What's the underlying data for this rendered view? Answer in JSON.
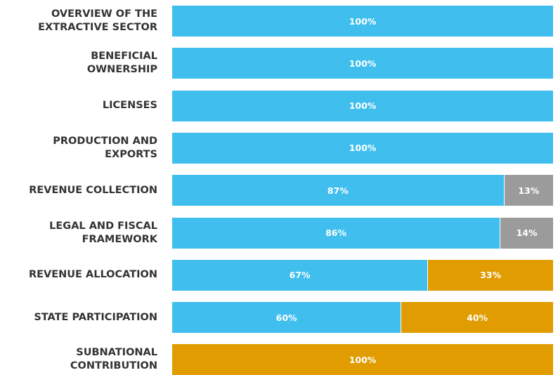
{
  "chart_data": {
    "type": "stacked-bar-horizontal",
    "categories": [
      "OVERVIEW OF THE\nEXTRACTIVE SECTOR",
      "BENEFICIAL\nOWNERSHIP",
      "LICENSES",
      "PRODUCTION AND\nEXPORTS",
      "REVENUE COLLECTION",
      "LEGAL AND FISCAL\nFRAMEWORK",
      "REVENUE ALLOCATION",
      "STATE PARTICIPATION",
      "SUBNATIONAL\nCONTRIBUTION"
    ],
    "series": [
      {
        "color": "#40bfef",
        "values": [
          100,
          100,
          100,
          100,
          87,
          86,
          67,
          60,
          0
        ],
        "value_labels": [
          "100%",
          "100%",
          "100%",
          "100%",
          "87%",
          "86%",
          "67%",
          "60%",
          null
        ]
      },
      {
        "color": "#9b9b9b",
        "values": [
          0,
          0,
          0,
          0,
          13,
          14,
          0,
          0,
          0
        ],
        "value_labels": [
          null,
          null,
          null,
          null,
          "13%",
          "14%",
          null,
          null,
          null
        ]
      },
      {
        "color": "#e09c00",
        "values": [
          0,
          0,
          0,
          0,
          0,
          0,
          33,
          40,
          100
        ],
        "value_labels": [
          null,
          null,
          null,
          null,
          null,
          null,
          "33%",
          "40%",
          "100%"
        ]
      }
    ],
    "xlim": [
      0,
      100
    ]
  }
}
